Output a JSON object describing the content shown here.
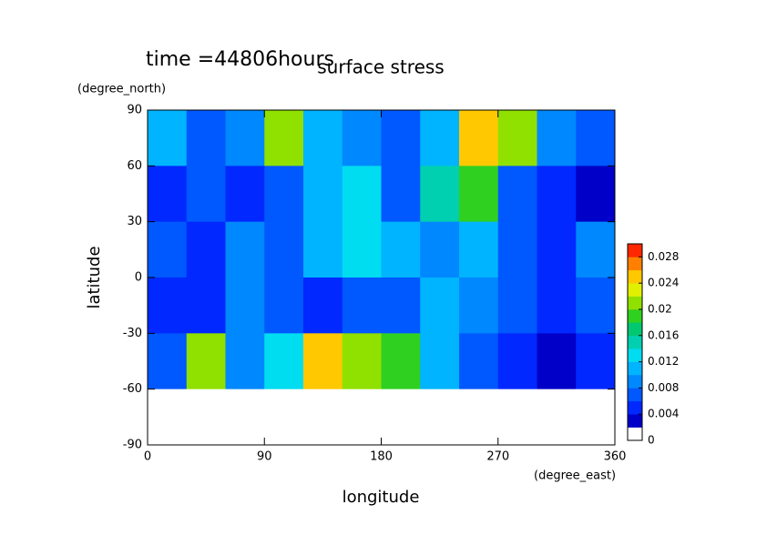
{
  "chart_data": {
    "type": "contour",
    "title": "surface stress",
    "subtitle": "time =44806hours",
    "x_label": "longitude",
    "x_unit": "(degree_east)",
    "y_label": "latitude",
    "y_unit": "(degree_north)",
    "xlim": [
      0,
      360
    ],
    "xticks": [
      0,
      90,
      180,
      270,
      360
    ],
    "ylim": [
      -90,
      90
    ],
    "yticks": [
      -90,
      -60,
      -30,
      0,
      30,
      60,
      90
    ],
    "x_bins": [
      0,
      30,
      60,
      90,
      120,
      150,
      180,
      210,
      240,
      270,
      300,
      330,
      360
    ],
    "y_bins": [
      90,
      60,
      30,
      0,
      -30,
      -60,
      -90
    ],
    "z": [
      [
        0.01,
        0.006,
        0.008,
        0.02,
        0.01,
        0.008,
        0.006,
        0.01,
        0.025,
        0.02,
        0.008,
        0.006
      ],
      [
        0.004,
        0.006,
        0.004,
        0.006,
        0.01,
        0.012,
        0.006,
        0.015,
        0.018,
        0.006,
        0.004,
        0.002
      ],
      [
        0.006,
        0.004,
        0.008,
        0.006,
        0.01,
        0.012,
        0.01,
        0.008,
        0.01,
        0.006,
        0.004,
        0.008
      ],
      [
        0.004,
        0.004,
        0.008,
        0.006,
        0.004,
        0.006,
        0.006,
        0.01,
        0.008,
        0.006,
        0.004,
        0.006
      ],
      [
        0.006,
        0.02,
        0.008,
        0.012,
        0.025,
        0.02,
        0.018,
        0.01,
        0.006,
        0.004,
        0.002,
        0.004
      ],
      [
        0,
        0,
        0,
        0,
        0,
        0,
        0,
        0,
        0,
        0,
        0,
        0
      ]
    ],
    "levels": [
      0,
      0.002,
      0.004,
      0.006,
      0.008,
      0.01,
      0.012,
      0.014,
      0.016,
      0.018,
      0.02,
      0.022,
      0.024,
      0.026,
      0.028
    ],
    "colors": [
      "#ffffff",
      "#0000c8",
      "#0028ff",
      "#0058ff",
      "#0088ff",
      "#00b4ff",
      "#00dcf0",
      "#00d0b0",
      "#00c870",
      "#30d020",
      "#90e000",
      "#e0f000",
      "#ffc800",
      "#ff8000",
      "#ff2800"
    ],
    "colorbar_lim": [
      0,
      0.03
    ],
    "colorbar_ticks": [
      0,
      0.004,
      0.008,
      0.012,
      0.016,
      0.02,
      0.024,
      0.028
    ]
  }
}
